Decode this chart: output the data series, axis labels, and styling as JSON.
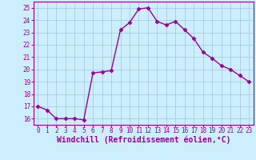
{
  "xlabel": "Windchill (Refroidissement éolien,°C)",
  "x": [
    0,
    1,
    2,
    3,
    4,
    5,
    6,
    7,
    8,
    9,
    10,
    11,
    12,
    13,
    14,
    15,
    16,
    17,
    18,
    19,
    20,
    21,
    22,
    23
  ],
  "y": [
    17.0,
    16.7,
    16.0,
    16.0,
    16.0,
    15.9,
    19.7,
    19.8,
    19.9,
    23.2,
    23.8,
    24.9,
    25.0,
    23.9,
    23.6,
    23.9,
    23.2,
    22.5,
    21.4,
    20.9,
    20.3,
    20.0,
    19.5,
    19.0
  ],
  "line_color": "#990099",
  "marker": "D",
  "markersize": 2.5,
  "linewidth": 1.0,
  "background_color": "#cceeff",
  "grid_color": "#99cccc",
  "ylim": [
    15.5,
    25.5
  ],
  "yticks": [
    16,
    17,
    18,
    19,
    20,
    21,
    22,
    23,
    24,
    25
  ],
  "xticks": [
    0,
    1,
    2,
    3,
    4,
    5,
    6,
    7,
    8,
    9,
    10,
    11,
    12,
    13,
    14,
    15,
    16,
    17,
    18,
    19,
    20,
    21,
    22,
    23
  ],
  "tick_color": "#990099",
  "label_color": "#990099",
  "tick_fontsize": 5.5,
  "xlabel_fontsize": 7.0,
  "xlim": [
    -0.5,
    23.5
  ]
}
